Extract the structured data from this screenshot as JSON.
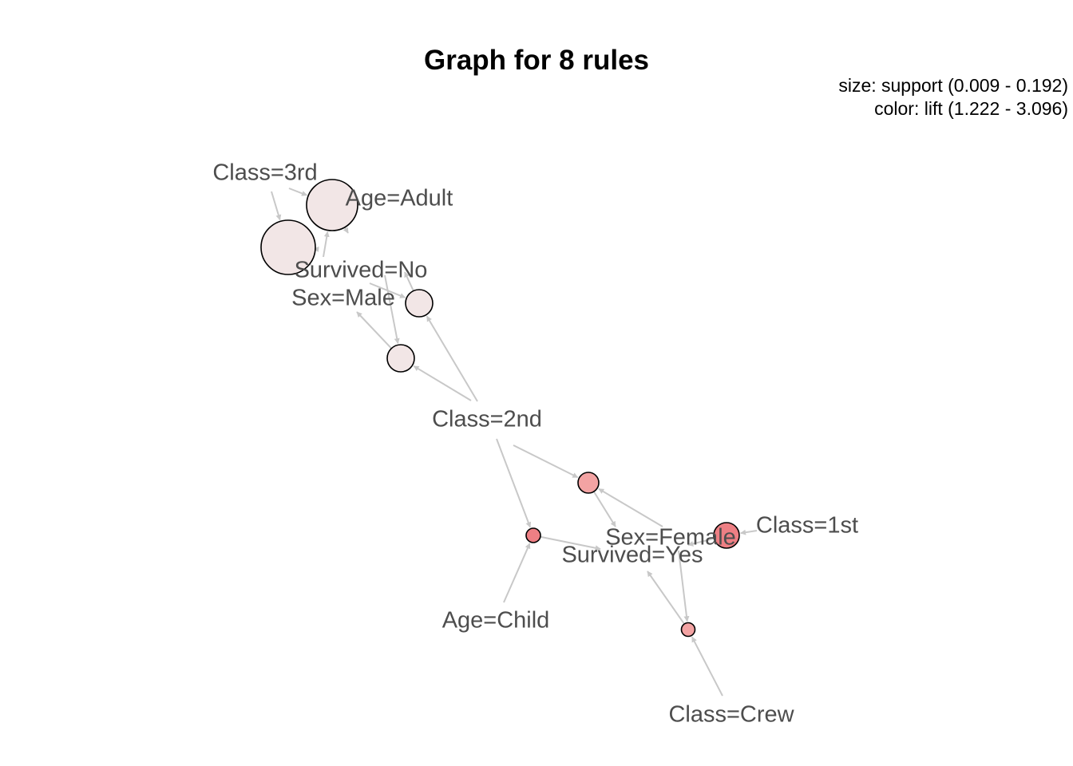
{
  "title": "Graph for 8 rules",
  "legend": {
    "size": "size: support (0.009 - 0.192)",
    "color": "color: lift (1.222 - 3.096)"
  },
  "colors": {
    "edge": "#c8c8c8",
    "label": "#4d4d4d",
    "low_lift": "#f2e6e6",
    "mid_lift": "#f3a3a3",
    "high_lift": "#ee7f84"
  },
  "items": [
    {
      "id": "class3rd",
      "label": "Class=3rd"
    },
    {
      "id": "ageAdult",
      "label": "Age=Adult"
    },
    {
      "id": "survivedNo",
      "label": "Survived=No"
    },
    {
      "id": "sexMale",
      "label": "Sex=Male"
    },
    {
      "id": "class2nd",
      "label": "Class=2nd"
    },
    {
      "id": "sexFemale",
      "label": "Sex=Female"
    },
    {
      "id": "class1st",
      "label": "Class=1st"
    },
    {
      "id": "survivedYes",
      "label": "Survived=Yes"
    },
    {
      "id": "ageChild",
      "label": "Age=Child"
    },
    {
      "id": "classCrew",
      "label": "Class=Crew"
    }
  ],
  "rules": [
    {
      "id": "r1",
      "lhs": [
        "class3rd",
        "survivedNo"
      ],
      "rhs": "ageAdult"
    },
    {
      "id": "r2",
      "lhs": [
        "class3rd",
        "ageAdult"
      ],
      "rhs": "survivedNo"
    },
    {
      "id": "r3",
      "lhs": [
        "ageAdult",
        "class2nd"
      ],
      "rhs": "sexMale"
    },
    {
      "id": "r4",
      "lhs": [
        "sexMale",
        "class2nd"
      ],
      "rhs": "survivedNo"
    },
    {
      "id": "r5",
      "lhs": [
        "class2nd",
        "sexFemale"
      ],
      "rhs": "survivedYes"
    },
    {
      "id": "r6",
      "lhs": [
        "class1st"
      ],
      "rhs": "survivedYes"
    },
    {
      "id": "r7",
      "lhs": [
        "ageChild",
        "class2nd"
      ],
      "rhs": "survivedYes"
    },
    {
      "id": "r8",
      "lhs": [
        "classCrew",
        "sexFemale"
      ],
      "rhs": "survivedYes"
    }
  ]
}
